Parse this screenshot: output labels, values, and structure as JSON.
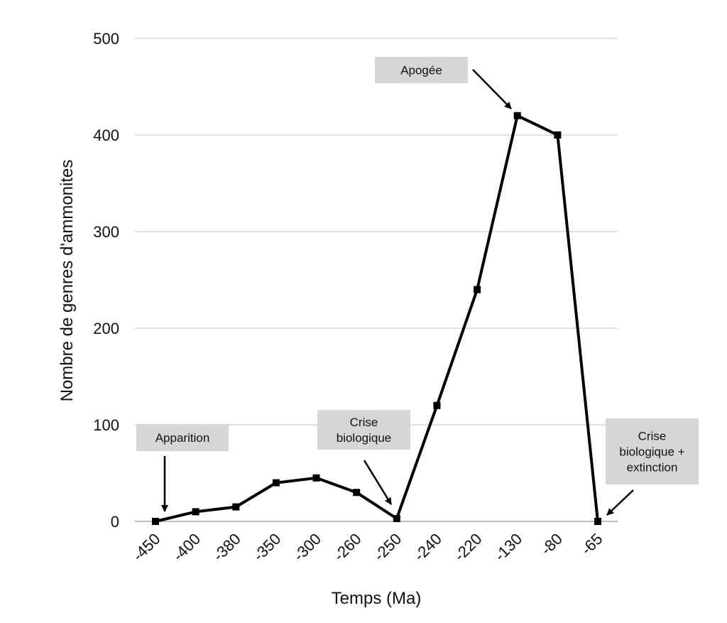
{
  "chart_data": {
    "type": "line",
    "title": "",
    "xlabel": "Temps (Ma)",
    "ylabel": "Nombre de genres d'ammonites",
    "categories": [
      "-450",
      "-400",
      "-380",
      "-350",
      "-300",
      "-260",
      "-250",
      "-240",
      "-220",
      "-130",
      "-80",
      "-65"
    ],
    "series": [
      {
        "values": [
          0,
          10,
          15,
          40,
          45,
          30,
          3,
          120,
          240,
          420,
          400,
          0
        ]
      }
    ],
    "ylim": [
      0,
      500
    ],
    "yticks": [
      0,
      100,
      200,
      300,
      400,
      500
    ],
    "grid": true,
    "line_color": "#000000",
    "grid_color": "#cccccc",
    "annotation_color": "#d6d6d6",
    "annotations": [
      {
        "name": "apparition",
        "lines": [
          "Apparition"
        ],
        "target_index": 0
      },
      {
        "name": "crise-biologique",
        "lines": [
          "Crise",
          "biologique"
        ],
        "target_index": 6
      },
      {
        "name": "apogee",
        "lines": [
          "Apogée"
        ],
        "target_index": 9
      },
      {
        "name": "crise-biologique-extinction",
        "lines": [
          "Crise",
          "biologique +",
          "extinction"
        ],
        "target_index": 11
      }
    ]
  }
}
